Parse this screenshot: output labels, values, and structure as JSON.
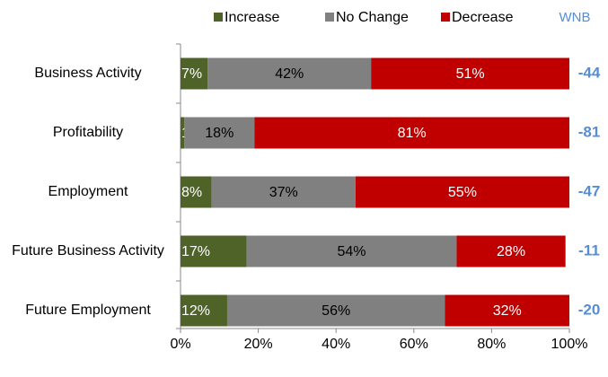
{
  "chart_data": {
    "type": "stacked_barh",
    "categories": [
      "Business Activity",
      "Profitability",
      "Employment",
      "Future Business Activity",
      "Future Employment"
    ],
    "series": [
      {
        "name": "Increase",
        "color": "#4f6228",
        "values": [
          7,
          1,
          8,
          17,
          12
        ],
        "value_labels": [
          "7%",
          "1%",
          "8%",
          "17%",
          "12%"
        ]
      },
      {
        "name": "No Change",
        "color": "#808080",
        "values": [
          42,
          18,
          37,
          54,
          56
        ],
        "value_labels": [
          "42%",
          "18%",
          "37%",
          "54%",
          "56%"
        ]
      },
      {
        "name": "Decrease",
        "color": "#c00000",
        "values": [
          51,
          81,
          55,
          28,
          32
        ],
        "value_labels": [
          "51%",
          "81%",
          "55%",
          "28%",
          "32%"
        ]
      }
    ],
    "wnb": {
      "label": "WNB",
      "color": "#558ed5",
      "values": [
        -44,
        -81,
        -47,
        -11,
        -20
      ]
    },
    "xlim": [
      0,
      100
    ],
    "xticks": [
      {
        "value": 0,
        "label": "0%"
      },
      {
        "value": 20,
        "label": "20%"
      },
      {
        "value": 40,
        "label": "40%"
      },
      {
        "value": 60,
        "label": "60%"
      },
      {
        "value": 80,
        "label": "80%"
      },
      {
        "value": 100,
        "label": "100%"
      }
    ]
  }
}
